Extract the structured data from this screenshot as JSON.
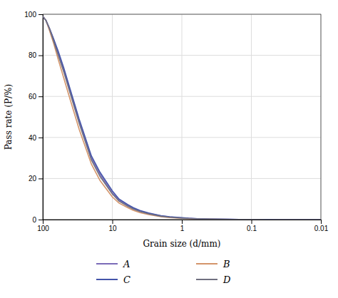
{
  "chart_data": {
    "type": "line",
    "xlabel": "Grain size (d/mm)",
    "ylabel": "Pass rate (P/%)",
    "log": "x",
    "grid": true,
    "legend": "bottom",
    "xlim": [
      100,
      0.01
    ],
    "ylim": [
      0,
      100
    ],
    "xticks": [
      100,
      10,
      1,
      0.1,
      0.01
    ],
    "yticks": [
      0,
      20,
      40,
      60,
      80,
      100
    ],
    "x": [
      100,
      90,
      80,
      70,
      60,
      50,
      40,
      30,
      20,
      15,
      10,
      8,
      6,
      5,
      4,
      3,
      2,
      1.5,
      1.0,
      0.8,
      0.6,
      0.4,
      0.3,
      0.2,
      0.15,
      0.1,
      0.08,
      0.06,
      0.04,
      0.02,
      0.01
    ],
    "series": [
      {
        "name": "A",
        "color": "#7B6BB8",
        "values": [
          99,
          97,
          93,
          88,
          81,
          73,
          62,
          48,
          30,
          22,
          13,
          9.5,
          7.0,
          5.5,
          4.2,
          3.0,
          1.8,
          1.3,
          0.8,
          0.6,
          0.4,
          0.25,
          0.18,
          0.12,
          0.09,
          0.06,
          0.04,
          0.03,
          0.02,
          0.01,
          0.005
        ]
      },
      {
        "name": "B",
        "color": "#D4956A",
        "values": [
          99,
          97,
          92,
          86,
          78,
          69,
          58,
          44,
          27,
          19,
          11,
          8.0,
          5.8,
          4.5,
          3.4,
          2.4,
          1.4,
          1.0,
          0.65,
          0.48,
          0.32,
          0.2,
          0.14,
          0.09,
          0.07,
          0.045,
          0.032,
          0.022,
          0.014,
          0.007,
          0.003
        ]
      },
      {
        "name": "C",
        "color": "#4455AA",
        "values": [
          99,
          97,
          93,
          88,
          82,
          74,
          63,
          49,
          31,
          23,
          14,
          10,
          7.3,
          5.8,
          4.4,
          3.2,
          1.9,
          1.4,
          0.9,
          0.65,
          0.44,
          0.28,
          0.2,
          0.13,
          0.1,
          0.065,
          0.045,
          0.03,
          0.02,
          0.01,
          0.005
        ]
      },
      {
        "name": "D",
        "color": "#707080",
        "values": [
          99,
          97,
          93,
          87,
          80,
          72,
          61,
          47,
          29,
          21,
          12.5,
          9.0,
          6.5,
          5.1,
          3.9,
          2.8,
          1.6,
          1.15,
          0.72,
          0.52,
          0.36,
          0.22,
          0.16,
          0.1,
          0.08,
          0.05,
          0.036,
          0.025,
          0.016,
          0.008,
          0.004
        ]
      }
    ]
  }
}
